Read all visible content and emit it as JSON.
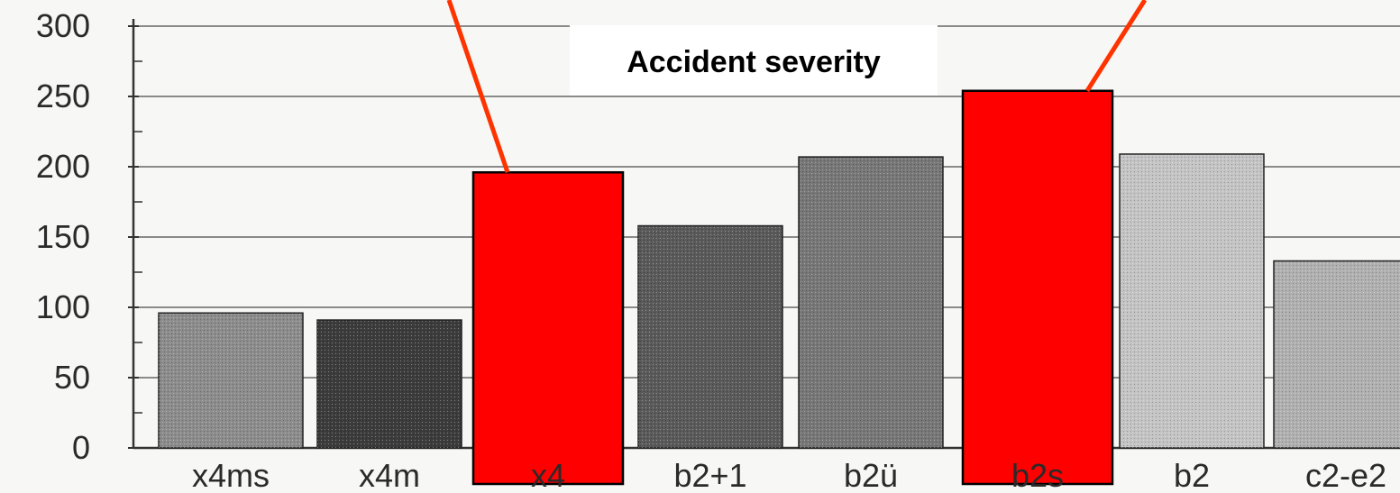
{
  "chart_data": {
    "type": "bar",
    "title": "Accident severity",
    "xlabel": "",
    "ylabel": "",
    "categories": [
      "x4ms",
      "x4m",
      "x4",
      "b2+1",
      "b2ü",
      "b2s",
      "b2",
      "c2-e2"
    ],
    "values": [
      96,
      91,
      196,
      158,
      207,
      254,
      209,
      133
    ],
    "highlighted": [
      "x4",
      "b2s"
    ],
    "ylim": [
      0,
      300
    ],
    "yticks": [
      0,
      50,
      100,
      150,
      200,
      250,
      300
    ],
    "grid": true,
    "legend": "none"
  },
  "colors": {
    "highlight": "#ff0000",
    "callout_line": "#ff3300",
    "gridline": "#8a8a8a",
    "axis": "#333333",
    "bar_shades": [
      "#8c8c8c",
      "#3c3c3c",
      "#6a6a6a",
      "#5a5a5a",
      "#777777",
      "#9a9a9a",
      "#c4c4c4",
      "#b0b0b0"
    ]
  }
}
